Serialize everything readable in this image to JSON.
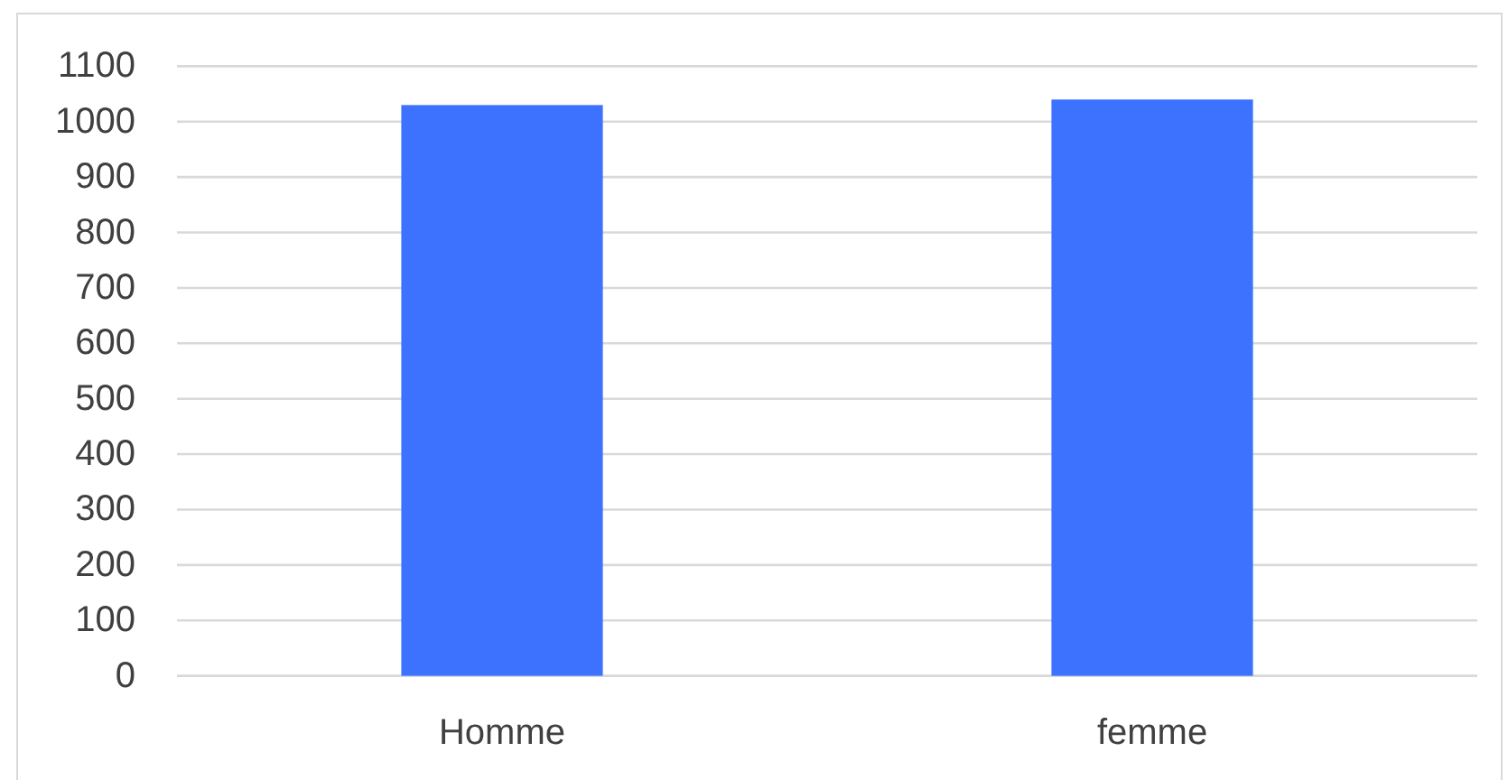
{
  "chart_data": {
    "type": "bar",
    "categories": [
      "Homme",
      "femme"
    ],
    "values": [
      1030,
      1040
    ],
    "color": "#3d72ff",
    "ylim": [
      0,
      1100
    ],
    "yticks": [
      0,
      100,
      200,
      300,
      400,
      500,
      600,
      700,
      800,
      900,
      1000,
      1100
    ],
    "grid": "y"
  }
}
